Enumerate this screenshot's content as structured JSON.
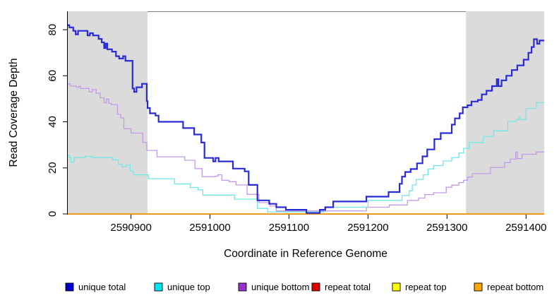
{
  "chart_data": {
    "type": "line",
    "step": true,
    "title": "",
    "xlabel": "Coordinate in Reference Genome",
    "ylabel": "Read Coverage Depth",
    "xlim": [
      2590820,
      2591423
    ],
    "ylim": [
      0,
      88
    ],
    "x_ticks": [
      2590900,
      2591000,
      2591100,
      2591200,
      2591300,
      2591400
    ],
    "y_ticks": [
      0,
      20,
      40,
      60,
      80
    ],
    "grid": false,
    "legend_position": "bottom",
    "background_color": "#ffffff",
    "shaded_region_color": "#dbdbdb",
    "highlight_regions": [
      {
        "name": "left repeat region",
        "x0": 2590820,
        "x1": 2590921
      },
      {
        "name": "right repeat region",
        "x0": 2591324,
        "x1": 2591423
      }
    ],
    "series": [
      {
        "name": "unique total",
        "color": "#2b2bd5",
        "legend_color": "#0000cd",
        "width": 2.2,
        "points": [
          [
            2590820,
            82
          ],
          [
            2590822,
            81
          ],
          [
            2590827,
            79.5
          ],
          [
            2590830,
            78
          ],
          [
            2590833,
            79.5
          ],
          [
            2590845,
            77.5
          ],
          [
            2590848,
            78.5
          ],
          [
            2590852,
            77.5
          ],
          [
            2590859,
            76
          ],
          [
            2590863,
            74.5
          ],
          [
            2590866,
            72
          ],
          [
            2590868,
            74
          ],
          [
            2590870,
            71.5
          ],
          [
            2590876,
            70.5
          ],
          [
            2590881,
            68.5
          ],
          [
            2590885,
            67.5
          ],
          [
            2590890,
            68.5
          ],
          [
            2590893,
            66.5
          ],
          [
            2590902,
            54.5
          ],
          [
            2590904,
            53
          ],
          [
            2590907,
            55
          ],
          [
            2590914,
            56.5
          ],
          [
            2590920,
            49
          ],
          [
            2590921,
            46
          ],
          [
            2590924,
            43.7
          ],
          [
            2590931,
            42.7
          ],
          [
            2590935,
            40
          ],
          [
            2590966,
            37.3
          ],
          [
            2590980,
            34.5
          ],
          [
            2590989,
            31
          ],
          [
            2590993,
            24.3
          ],
          [
            2591004,
            22.8
          ],
          [
            2591007,
            24.3
          ],
          [
            2591011,
            22.8
          ],
          [
            2591029,
            19.7
          ],
          [
            2591044,
            18.5
          ],
          [
            2591049,
            12.6
          ],
          [
            2591060,
            5.9
          ],
          [
            2591075,
            4.4
          ],
          [
            2591084,
            2.9
          ],
          [
            2591096,
            1.8
          ],
          [
            2591122,
            0.4
          ],
          [
            2591139,
            1.8
          ],
          [
            2591146,
            2.9
          ],
          [
            2591156,
            5.4
          ],
          [
            2591198,
            7.5
          ],
          [
            2591226,
            9.5
          ],
          [
            2591240,
            13.1
          ],
          [
            2591243,
            16.2
          ],
          [
            2591247,
            18.2
          ],
          [
            2591254,
            19.5
          ],
          [
            2591262,
            22
          ],
          [
            2591269,
            25
          ],
          [
            2591275,
            28
          ],
          [
            2591284,
            32.5
          ],
          [
            2591292,
            35.1
          ],
          [
            2591306,
            38.8
          ],
          [
            2591310,
            41.5
          ],
          [
            2591316,
            43.7
          ],
          [
            2591320,
            46.3
          ],
          [
            2591326,
            47.2
          ],
          [
            2591331,
            48.8
          ],
          [
            2591339,
            49.5
          ],
          [
            2591344,
            51.9
          ],
          [
            2591350,
            53.5
          ],
          [
            2591357,
            55.5
          ],
          [
            2591363,
            58.5
          ],
          [
            2591365,
            55.5
          ],
          [
            2591369,
            58
          ],
          [
            2591375,
            60
          ],
          [
            2591382,
            62.5
          ],
          [
            2591389,
            64.5
          ],
          [
            2591397,
            67
          ],
          [
            2591403,
            70
          ],
          [
            2591407,
            72.5
          ],
          [
            2591410,
            75.9
          ],
          [
            2591414,
            73.9
          ],
          [
            2591417,
            75.3
          ]
        ]
      },
      {
        "name": "unique top",
        "color": "#6fe8e8",
        "legend_color": "#00e5ee",
        "width": 1.3,
        "points": [
          [
            2590820,
            25.5
          ],
          [
            2590822,
            24.5
          ],
          [
            2590824,
            22.5
          ],
          [
            2590828,
            24.5
          ],
          [
            2590842,
            25
          ],
          [
            2590851,
            24.5
          ],
          [
            2590877,
            23.5
          ],
          [
            2590884,
            21.5
          ],
          [
            2590889,
            20.5
          ],
          [
            2590894,
            21.2
          ],
          [
            2590899,
            18.7
          ],
          [
            2590903,
            17
          ],
          [
            2590922,
            15.3
          ],
          [
            2590955,
            13
          ],
          [
            2590975,
            11.5
          ],
          [
            2590985,
            10.5
          ],
          [
            2590991,
            8.2
          ],
          [
            2591031,
            6.4
          ],
          [
            2591060,
            2.4
          ],
          [
            2591073,
            0.9
          ],
          [
            2591145,
            2.9
          ],
          [
            2591200,
            5.9
          ],
          [
            2591243,
            8
          ],
          [
            2591252,
            10
          ],
          [
            2591256,
            12.6
          ],
          [
            2591261,
            15
          ],
          [
            2591270,
            17
          ],
          [
            2591276,
            19.5
          ],
          [
            2591283,
            21
          ],
          [
            2591295,
            23
          ],
          [
            2591306,
            24.5
          ],
          [
            2591315,
            26.5
          ],
          [
            2591321,
            28.5
          ],
          [
            2591328,
            31
          ],
          [
            2591346,
            33.6
          ],
          [
            2591359,
            36.1
          ],
          [
            2591377,
            40.2
          ],
          [
            2591388,
            41
          ],
          [
            2591391,
            42
          ],
          [
            2591393,
            41
          ],
          [
            2591400,
            45.8
          ],
          [
            2591413,
            48.3
          ]
        ]
      },
      {
        "name": "unique bottom",
        "color": "#c49ae5",
        "legend_color": "#9a30d0",
        "width": 1.3,
        "points": [
          [
            2590820,
            56.5
          ],
          [
            2590823,
            55.5
          ],
          [
            2590831,
            55
          ],
          [
            2590834,
            55.5
          ],
          [
            2590836,
            54.5
          ],
          [
            2590847,
            53
          ],
          [
            2590851,
            54
          ],
          [
            2590856,
            52.4
          ],
          [
            2590861,
            50.4
          ],
          [
            2590866,
            48.3
          ],
          [
            2590869,
            49.9
          ],
          [
            2590872,
            48
          ],
          [
            2590875,
            47.5
          ],
          [
            2590883,
            43.2
          ],
          [
            2590887,
            41.7
          ],
          [
            2590891,
            37
          ],
          [
            2590900,
            35.1
          ],
          [
            2590915,
            31
          ],
          [
            2590920,
            27.6
          ],
          [
            2590933,
            24.8
          ],
          [
            2590968,
            23.3
          ],
          [
            2590981,
            19.7
          ],
          [
            2590990,
            16.2
          ],
          [
            2591007,
            16.4
          ],
          [
            2591010,
            17
          ],
          [
            2591015,
            14.6
          ],
          [
            2591024,
            14
          ],
          [
            2591033,
            12.6
          ],
          [
            2591047,
            8.5
          ],
          [
            2591062,
            4.9
          ],
          [
            2591076,
            3.4
          ],
          [
            2591084,
            1.3
          ],
          [
            2591198,
            2.9
          ],
          [
            2591227,
            3.9
          ],
          [
            2591250,
            5.9
          ],
          [
            2591264,
            6.9
          ],
          [
            2591272,
            8.4
          ],
          [
            2591283,
            9.2
          ],
          [
            2591299,
            11.6
          ],
          [
            2591306,
            12.5
          ],
          [
            2591315,
            13.6
          ],
          [
            2591321,
            14.6
          ],
          [
            2591326,
            16
          ],
          [
            2591332,
            17.5
          ],
          [
            2591355,
            20.2
          ],
          [
            2591373,
            22.3
          ],
          [
            2591380,
            23.8
          ],
          [
            2591387,
            26.9
          ],
          [
            2591389,
            24
          ],
          [
            2591395,
            25.9
          ],
          [
            2591413,
            26.9
          ]
        ]
      },
      {
        "name": "repeat total",
        "color": "#de1f26",
        "legend_color": "#e00000",
        "width": 1.3,
        "points": [
          [
            2590820,
            0
          ]
        ]
      },
      {
        "name": "repeat top",
        "color": "#ffff00",
        "legend_color": "#ffff00",
        "width": 1.3,
        "points": [
          [
            2590820,
            0
          ]
        ]
      },
      {
        "name": "repeat bottom",
        "color": "#ff9d00",
        "legend_color": "#ffa500",
        "width": 1.6,
        "points": [
          [
            2590820,
            0
          ]
        ]
      }
    ]
  }
}
